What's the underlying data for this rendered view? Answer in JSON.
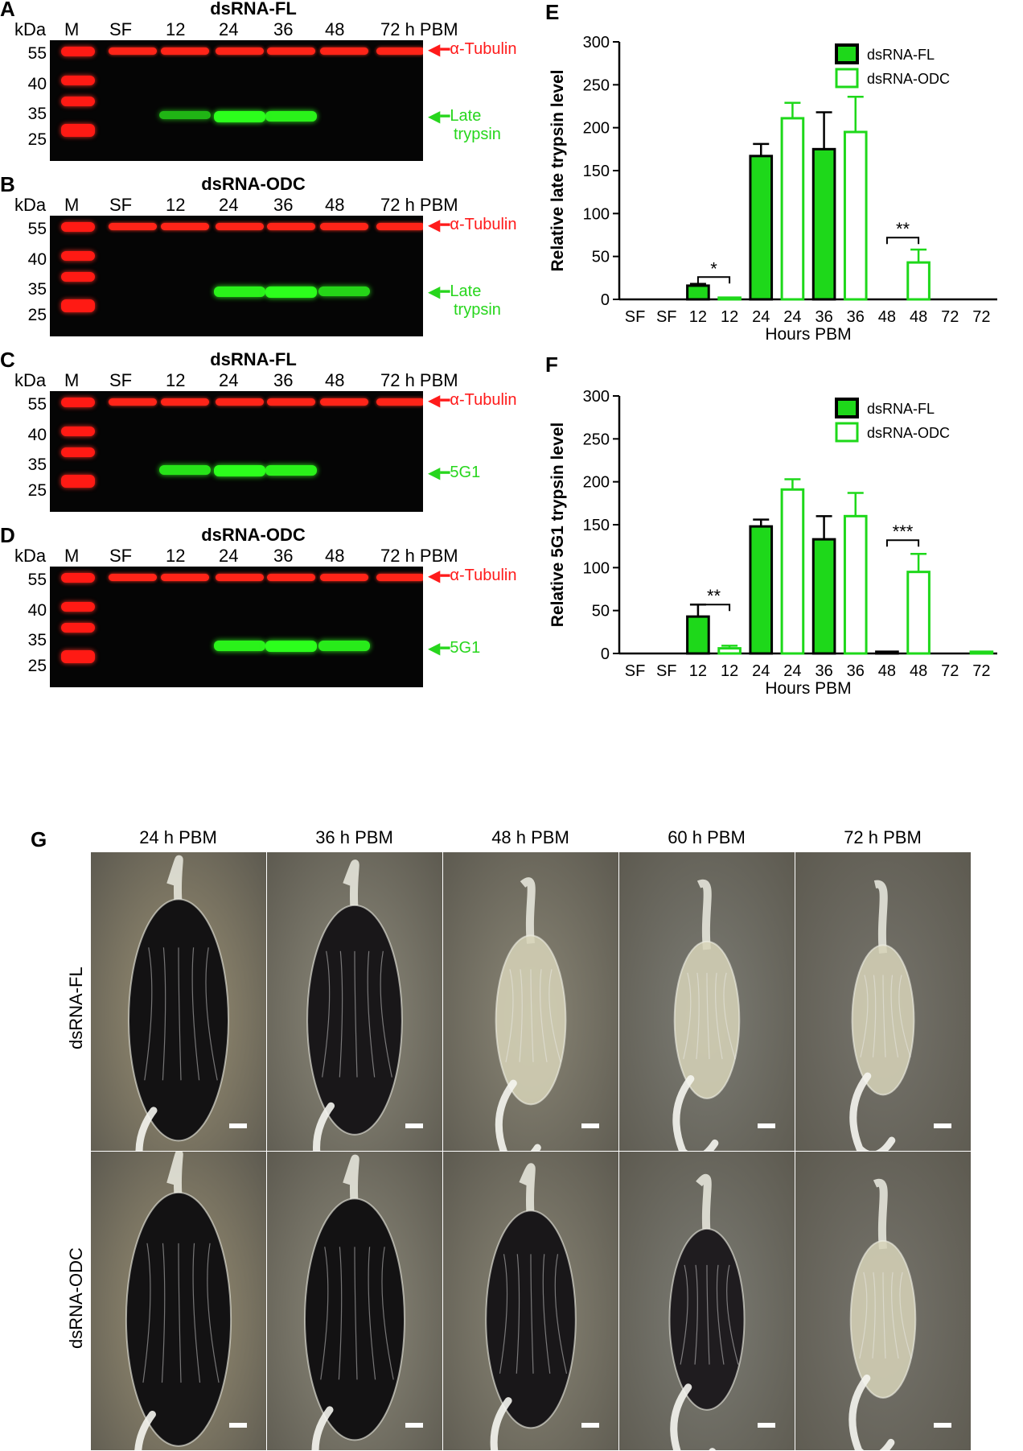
{
  "panels": {
    "A": {
      "letter": "A",
      "title": "dsRNA-FL"
    },
    "B": {
      "letter": "B",
      "title": "dsRNA-ODC"
    },
    "C": {
      "letter": "C",
      "title": "dsRNA-FL"
    },
    "D": {
      "letter": "D",
      "title": "dsRNA-ODC"
    },
    "E": {
      "letter": "E"
    },
    "F": {
      "letter": "F"
    },
    "G": {
      "letter": "G"
    }
  },
  "blot_header": {
    "kda": "kDa",
    "marker": "M",
    "lanes": [
      "SF",
      "12",
      "24",
      "36",
      "48",
      "72 h PBM"
    ],
    "mw": [
      "55",
      "40",
      "35",
      "25"
    ]
  },
  "band_labels": {
    "tubulin": "α-Tubulin",
    "late_trypsin_line1": "Late",
    "late_trypsin_line2": "trypsin",
    "g5g1": "5G1"
  },
  "blot_intensity": {
    "A_trypsin": [
      0,
      0.45,
      1.0,
      0.9,
      0,
      0
    ],
    "B_trypsin": [
      0,
      0,
      0.9,
      1.0,
      0.7,
      0
    ],
    "C_5g1": [
      0,
      0.8,
      1.0,
      0.9,
      0,
      0
    ],
    "D_5g1": [
      0,
      0,
      0.9,
      1.0,
      0.85,
      0
    ]
  },
  "chart_data": [
    {
      "type": "bar",
      "panel": "E",
      "ylabel": "Relative late trypsin level",
      "xlabel": "Hours PBM",
      "categories": [
        "SF",
        "SF",
        "12",
        "12",
        "24",
        "24",
        "36",
        "36",
        "48",
        "48",
        "72",
        "72"
      ],
      "series": [
        {
          "name": "dsRNA-FL",
          "values": [
            0,
            null,
            16,
            null,
            167,
            null,
            175,
            null,
            0,
            null,
            0,
            null
          ],
          "errors": [
            0,
            null,
            2,
            null,
            14,
            null,
            43,
            null,
            0,
            null,
            0,
            null
          ]
        },
        {
          "name": "dsRNA-ODC",
          "values": [
            null,
            0,
            null,
            2,
            null,
            211,
            null,
            195,
            null,
            43,
            null,
            0
          ],
          "errors": [
            null,
            0,
            null,
            0,
            null,
            18,
            null,
            41,
            null,
            15,
            null,
            0
          ]
        }
      ],
      "yticks": [
        0,
        50,
        100,
        150,
        200,
        250,
        300
      ],
      "ylim": [
        0,
        300
      ],
      "significance": [
        {
          "between": [
            "12",
            "12"
          ],
          "label": "*"
        },
        {
          "between": [
            "48",
            "48"
          ],
          "label": "**"
        }
      ],
      "legend": "top-right"
    },
    {
      "type": "bar",
      "panel": "F",
      "ylabel": "Relative 5G1 trypsin level",
      "xlabel": "Hours PBM",
      "categories": [
        "SF",
        "SF",
        "12",
        "12",
        "24",
        "24",
        "36",
        "36",
        "48",
        "48",
        "72",
        "72"
      ],
      "series": [
        {
          "name": "dsRNA-FL",
          "values": [
            0,
            null,
            43,
            null,
            148,
            null,
            133,
            null,
            2,
            null,
            0,
            null
          ],
          "errors": [
            0,
            null,
            14,
            null,
            8,
            null,
            27,
            null,
            0,
            null,
            0,
            null
          ]
        },
        {
          "name": "dsRNA-ODC",
          "values": [
            null,
            0,
            null,
            6,
            null,
            191,
            null,
            160,
            null,
            95,
            null,
            2
          ],
          "errors": [
            null,
            0,
            null,
            3,
            null,
            12,
            null,
            27,
            null,
            21,
            null,
            0
          ]
        }
      ],
      "yticks": [
        0,
        50,
        100,
        150,
        200,
        250,
        300
      ],
      "ylim": [
        0,
        300
      ],
      "significance": [
        {
          "between": [
            "12",
            "12"
          ],
          "label": "**"
        },
        {
          "between": [
            "48",
            "48"
          ],
          "label": "***"
        }
      ],
      "legend": "top-right"
    }
  ],
  "legend": {
    "fl": "dsRNA-FL",
    "odc": "dsRNA-ODC"
  },
  "photos": {
    "columns": [
      "24 h PBM",
      "36 h PBM",
      "48 h PBM",
      "60 h PBM",
      "72 h PBM"
    ],
    "rows": [
      "dsRNA-FL",
      "dsRNA-ODC"
    ]
  },
  "colors": {
    "green": "#1ed81a",
    "red": "#ff1a1a",
    "bar_edge": "#000000"
  }
}
